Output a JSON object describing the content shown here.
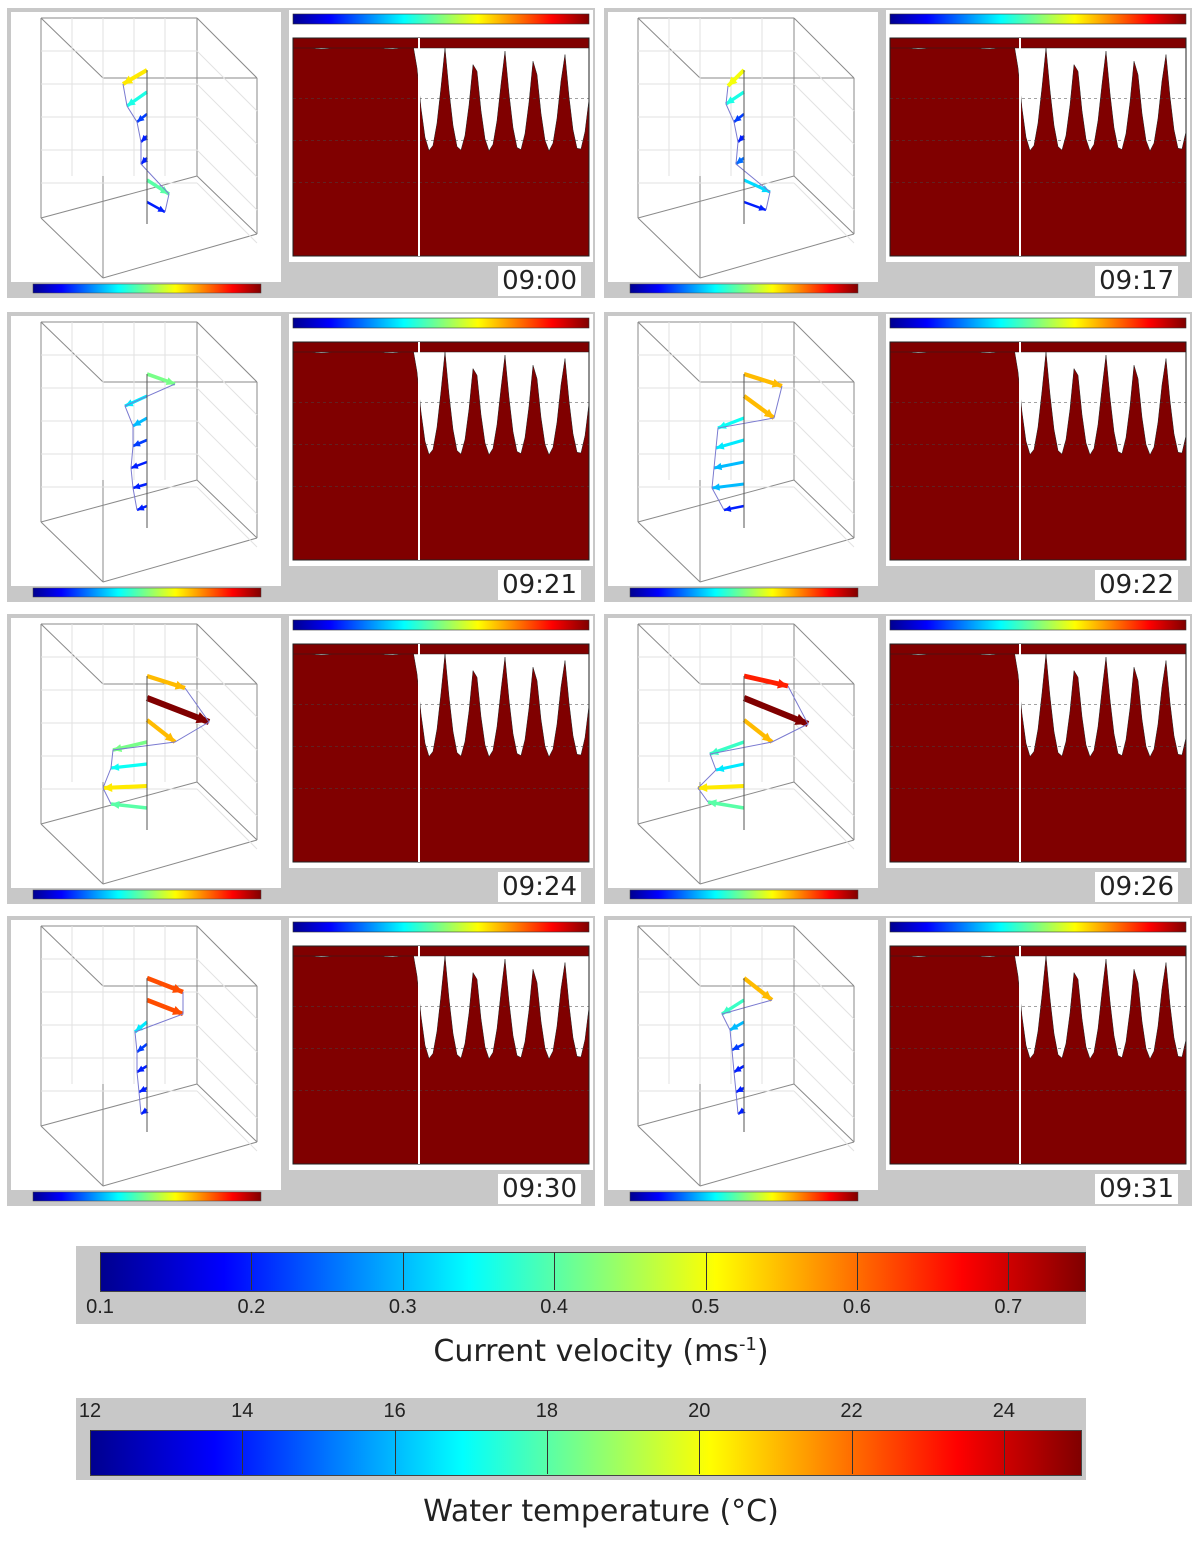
{
  "chart_data": {
    "type": "heatmap",
    "description_panels": "8 snapshots, each with a 3D current-vector profile and a temperature depth-time contour",
    "panels": [
      {
        "time": "09:00"
      },
      {
        "time": "09:17"
      },
      {
        "time": "09:21"
      },
      {
        "time": "09:22"
      },
      {
        "time": "09:24"
      },
      {
        "time": "09:26"
      },
      {
        "time": "09:30"
      },
      {
        "time": "09:31"
      }
    ],
    "velocity_scale": {
      "title": "Current velocity (ms",
      "title_sup": "-1",
      "title_end": ")",
      "ticks": [
        "0.1",
        "0.2",
        "0.3",
        "0.4",
        "0.5",
        "0.6",
        "0.7"
      ],
      "range": [
        0.1,
        0.75
      ]
    },
    "temperature_scale": {
      "title": "Water temperature (°C)",
      "ticks": [
        "12",
        "14",
        "16",
        "18",
        "20",
        "22",
        "24"
      ],
      "range": [
        12,
        25
      ]
    },
    "colormap": [
      "#00008f",
      "#0000ff",
      "#0080ff",
      "#00ffff",
      "#80ff80",
      "#ffff00",
      "#ff8000",
      "#ff0000",
      "#800000"
    ]
  }
}
